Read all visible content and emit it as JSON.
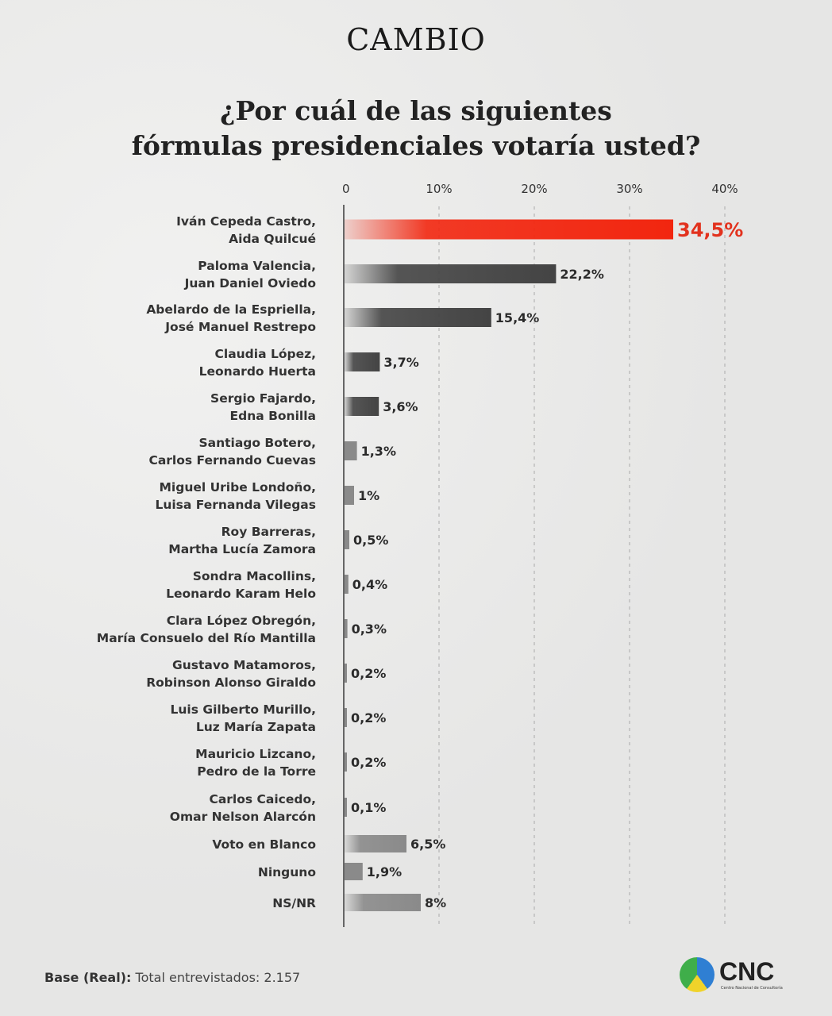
{
  "brand": "CAMBIO",
  "title_line1": "¿Por cuál de las siguientes",
  "title_line2": "fórmulas presidenciales votaría usted?",
  "footer": {
    "label": "Base (Real):",
    "text": "Total entrevistados: 2.157"
  },
  "source_logo": {
    "text": "CNC",
    "subtitle": "Centro Nacional de Consultoría"
  },
  "colors": {
    "highlight": "#f2260f",
    "dark": "#444444",
    "light": "#8a8a8a"
  },
  "chart_data": {
    "type": "bar",
    "orientation": "horizontal",
    "xlim": [
      0,
      40
    ],
    "x_ticks": [
      "0",
      "10%",
      "20%",
      "30%",
      "40%"
    ],
    "grid": true,
    "categories": [
      [
        "Iván Cepeda Castro,",
        "Aida Quilcué"
      ],
      [
        "Paloma Valencia,",
        "Juan Daniel Oviedo"
      ],
      [
        "Abelardo de la Espriella,",
        "José Manuel Restrepo"
      ],
      [
        "Claudia López,",
        "Leonardo Huerta"
      ],
      [
        "Sergio Fajardo,",
        "Edna Bonilla"
      ],
      [
        "Santiago Botero,",
        "Carlos Fernando Cuevas"
      ],
      [
        "Miguel Uribe Londoño,",
        "Luisa Fernanda Vilegas"
      ],
      [
        "Roy Barreras,",
        "Martha Lucía Zamora"
      ],
      [
        "Sondra Macollins,",
        "Leonardo Karam Helo"
      ],
      [
        "Clara López Obregón,",
        "María Consuelo del Río Mantilla"
      ],
      [
        "Gustavo Matamoros,",
        "Robinson Alonso Giraldo"
      ],
      [
        "Luis Gilberto Murillo,",
        "Luz María Zapata"
      ],
      [
        "Mauricio Lizcano,",
        "Pedro de la Torre"
      ],
      [
        "Carlos Caicedo,",
        "Omar Nelson Alarcón"
      ],
      [
        "Voto en Blanco"
      ],
      [
        "Ninguno"
      ],
      [
        "NS/NR"
      ]
    ],
    "values": [
      34.5,
      22.2,
      15.4,
      3.7,
      3.6,
      1.3,
      1,
      0.5,
      0.4,
      0.3,
      0.2,
      0.2,
      0.2,
      0.1,
      6.5,
      1.9,
      8
    ],
    "labels": [
      "34,5%",
      "22,2%",
      "15,4%",
      "3,7%",
      "3,6%",
      "1,3%",
      "1%",
      "0,5%",
      "0,4%",
      "0,3%",
      "0,2%",
      "0,2%",
      "0,2%",
      "0,1%",
      "6,5%",
      "1,9%",
      "8%"
    ],
    "bar_styles": [
      "highlight",
      "dark",
      "dark",
      "dark",
      "dark",
      "light",
      "light",
      "light",
      "light",
      "light",
      "light",
      "light",
      "light",
      "light",
      "light",
      "light",
      "light"
    ]
  }
}
